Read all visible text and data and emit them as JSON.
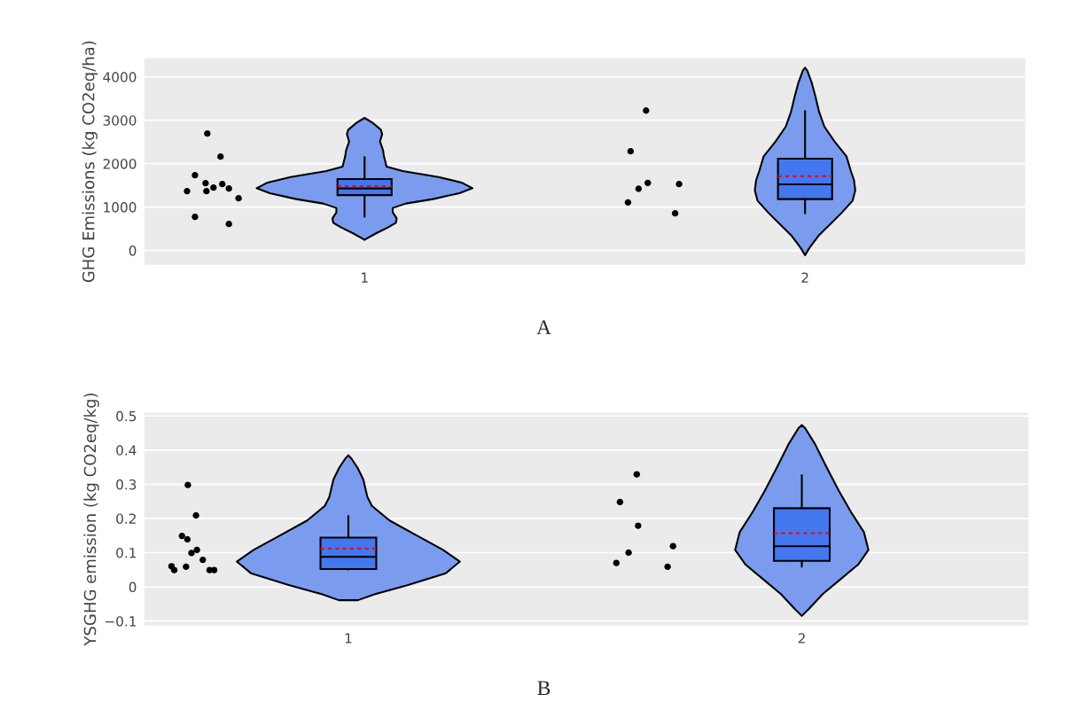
{
  "chart_data": [
    {
      "type": "box",
      "ylabel": "GHG Emissions (kg CO2eq/ha)",
      "annotations": [
        "A"
      ],
      "xlim": [
        0.5,
        2.5
      ],
      "xticks": [
        1,
        2
      ],
      "ylim": [
        -330,
        4430
      ],
      "yticks": [
        0,
        1000,
        2000,
        3000,
        4000
      ],
      "grid": "y",
      "series": [
        {
          "type": "area",
          "color": "#7b9bee",
          "x": [
            1,
            1.017,
            1.037,
            1.04,
            1.035,
            1.042,
            1.044,
            1.05,
            1.087,
            1.168,
            1.222,
            1.245,
            1.215,
            1.155,
            1.094,
            1.064,
            1.064,
            1.073,
            1.071,
            1.054,
            1.027,
            1.003,
            1,
            0.997,
            0.973,
            0.946,
            0.929,
            0.927,
            0.936,
            0.936,
            0.906,
            0.845,
            0.785,
            0.755,
            0.778,
            0.832,
            0.913,
            0.95,
            0.956,
            0.958,
            0.965,
            0.96,
            0.963,
            0.983
          ],
          "values": [
            3055,
            2952,
            2782,
            2680,
            2510,
            2306,
            2170,
            1932,
            1830,
            1694,
            1558,
            1435,
            1320,
            1184,
            1082,
            980,
            878,
            741,
            639,
            537,
            401,
            265,
            245,
            265,
            401,
            537,
            639,
            741,
            878,
            980,
            1082,
            1184,
            1320,
            1435,
            1558,
            1694,
            1830,
            1932,
            2170,
            2306,
            2510,
            2680,
            2782,
            2952
          ]
        },
        {
          "type": "area",
          "color": "#7b9bee",
          "x": [
            2,
            2.005,
            2.015,
            2.024,
            2.032,
            2.044,
            2.067,
            2.094,
            2.104,
            2.111,
            2.114,
            2.108,
            2.084,
            2.057,
            2.03,
            2.01,
            2,
            1.99,
            1.97,
            1.943,
            1.916,
            1.892,
            1.886,
            1.889,
            1.896,
            1.906,
            1.933,
            1.956,
            1.968,
            1.976,
            1.985,
            1.995
          ],
          "values": [
            4211,
            4143,
            3871,
            3531,
            3190,
            2851,
            2510,
            2170,
            1830,
            1626,
            1388,
            1149,
            878,
            606,
            333,
            61,
            -108,
            61,
            333,
            606,
            878,
            1149,
            1388,
            1626,
            1830,
            2170,
            2510,
            2851,
            3190,
            3531,
            3871,
            4143
          ]
        },
        {
          "color": "#4477ee",
          "x": [
            1,
            2
          ],
          "boxes": [
            {
              "low": 776,
              "q1": 1276,
              "median": 1429,
              "q3": 1647,
              "high": 2150,
              "mean": 1484
            },
            {
              "low": 857,
              "q1": 1184,
              "median": 1524,
              "q3": 2116,
              "high": 3211,
              "mean": 1714
            }
          ]
        },
        {
          "type": "scatter",
          "color": "#000000",
          "marker": "circle",
          "x": [
            0.643,
            0.673,
            0.615,
            0.639,
            0.657,
            0.677,
            0.641,
            0.597,
            0.692,
            0.714,
            0.615,
            0.692,
            1.639,
            1.604,
            1.643,
            1.622,
            1.598,
            1.714,
            1.705
          ],
          "values": [
            2694,
            2163,
            1735,
            1551,
            1449,
            1531,
            1367,
            1367,
            1429,
            1204,
            776,
            612,
            3224,
            2286,
            1558,
            1422,
            1109,
            1531,
            857
          ]
        }
      ]
    },
    {
      "type": "box",
      "ylabel": "YSGHG emission (kg CO2eq/kg)",
      "annotations": [
        "B"
      ],
      "xlim": [
        0.55,
        2.5
      ],
      "xticks": [
        1,
        2
      ],
      "ylim": [
        -0.113,
        0.51
      ],
      "yticks": [
        {
          "value": -0.1,
          "label": "−0.1"
        },
        0,
        0.1,
        0.2,
        0.3,
        0.4,
        0.5
      ],
      "grid": "y",
      "series": [
        {
          "type": "area",
          "color": "#7b9bee",
          "x": [
            1,
            1.007,
            1.02,
            1.033,
            1.042,
            1.052,
            1.091,
            1.15,
            1.209,
            1.246,
            1.215,
            1.13,
            1.059,
            1.021,
            0.979,
            0.941,
            0.87,
            0.785,
            0.754,
            0.791,
            0.85,
            0.909,
            0.948,
            0.958,
            0.967,
            0.98,
            0.993
          ],
          "values": [
            0.385,
            0.375,
            0.349,
            0.314,
            0.263,
            0.237,
            0.194,
            0.151,
            0.108,
            0.074,
            0.04,
            0.005,
            -0.021,
            -0.039,
            -0.039,
            -0.021,
            0.005,
            0.04,
            0.074,
            0.108,
            0.151,
            0.194,
            0.237,
            0.263,
            0.314,
            0.349,
            0.375
          ]
        },
        {
          "type": "area",
          "color": "#7b9bee",
          "x": [
            2,
            2.007,
            2.029,
            2.055,
            2.082,
            2.108,
            2.137,
            2.147,
            2.124,
            2.085,
            2.046,
            2.016,
            2,
            1.984,
            1.954,
            1.915,
            1.876,
            1.853,
            1.863,
            1.892,
            1.918,
            1.945,
            1.971,
            1.993
          ],
          "values": [
            0.473,
            0.465,
            0.418,
            0.349,
            0.28,
            0.22,
            0.16,
            0.108,
            0.065,
            0.022,
            -0.021,
            -0.064,
            -0.085,
            -0.064,
            -0.021,
            0.022,
            0.065,
            0.108,
            0.16,
            0.22,
            0.28,
            0.349,
            0.418,
            0.465
          ]
        },
        {
          "color": "#4477ee",
          "x": [
            1,
            2
          ],
          "boxes": [
            {
              "low": 0.05,
              "q1": 0.052,
              "median": 0.088,
              "q3": 0.144,
              "high": 0.207,
              "mean": 0.112
            },
            {
              "low": 0.059,
              "q1": 0.076,
              "median": 0.119,
              "q3": 0.23,
              "high": 0.327,
              "mean": 0.157
            }
          ]
        },
        {
          "type": "scatter",
          "color": "#000000",
          "marker": "circle",
          "x": [
            0.646,
            0.664,
            0.633,
            0.645,
            0.666,
            0.654,
            0.679,
            0.61,
            0.616,
            0.642,
            0.694,
            0.704,
            1.636,
            1.599,
            1.639,
            1.716,
            1.618,
            1.591,
            1.704
          ],
          "values": [
            0.298,
            0.209,
            0.149,
            0.139,
            0.108,
            0.099,
            0.079,
            0.06,
            0.049,
            0.059,
            0.049,
            0.049,
            0.329,
            0.248,
            0.179,
            0.119,
            0.1,
            0.07,
            0.059
          ]
        }
      ]
    }
  ]
}
